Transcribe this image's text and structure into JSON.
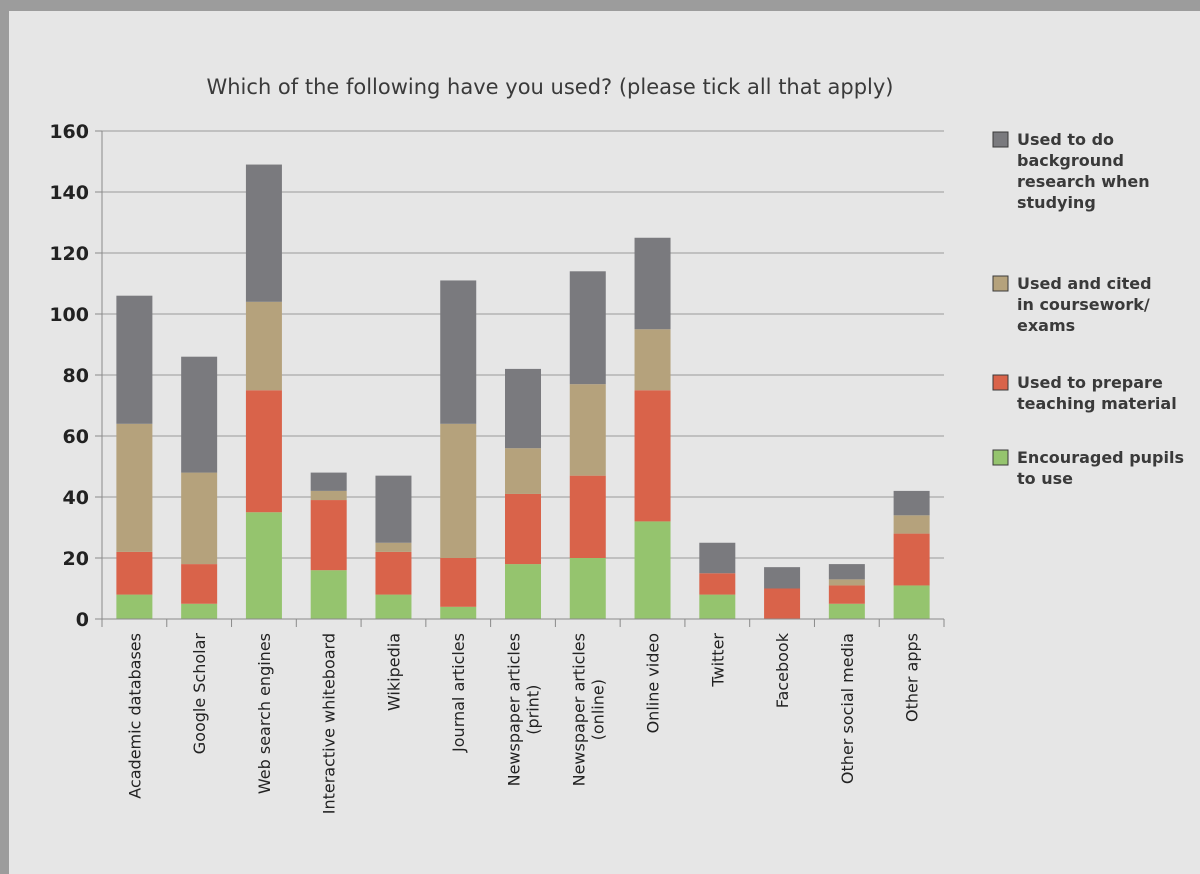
{
  "chart_data": {
    "type": "bar",
    "stacked": true,
    "title": "Which of the following have you used? (please tick all that apply)",
    "xlabel": "",
    "ylabel": "",
    "ylim": [
      0,
      160
    ],
    "yticks": [
      0,
      20,
      40,
      60,
      80,
      100,
      120,
      140,
      160
    ],
    "grid": true,
    "legend_position": "right",
    "categories": [
      "Academic databases",
      "Google Scholar",
      "Web search engines",
      "Interactive whiteboard",
      "Wikipedia",
      "Journal articles",
      "Newspaper articles (print)",
      "Newspaper articles (online)",
      "Online video",
      "Twitter",
      "Facebook",
      "Other social media",
      "Other apps"
    ],
    "category_lines": [
      [
        "Academic databases"
      ],
      [
        "Google Scholar"
      ],
      [
        "Web search engines"
      ],
      [
        "Interactive whiteboard"
      ],
      [
        "Wikipedia"
      ],
      [
        "Journal articles"
      ],
      [
        "Newspaper articles",
        "(print)"
      ],
      [
        "Newspaper articles",
        "(online)"
      ],
      [
        "Online video"
      ],
      [
        "Twitter"
      ],
      [
        "Facebook"
      ],
      [
        "Other social media"
      ],
      [
        "Other apps"
      ]
    ],
    "series": [
      {
        "name": "Encouraged pupils to use",
        "legend_lines": [
          "Encouraged pupils",
          "to use"
        ],
        "color": "#95c46e",
        "values": [
          8,
          5,
          35,
          16,
          8,
          4,
          18,
          20,
          32,
          8,
          0,
          5,
          11
        ]
      },
      {
        "name": "Used to prepare teaching material",
        "legend_lines": [
          "Used to prepare",
          "teaching material"
        ],
        "color": "#d9634a",
        "values": [
          14,
          13,
          40,
          23,
          14,
          16,
          23,
          27,
          43,
          7,
          10,
          6,
          17
        ]
      },
      {
        "name": "Used and cited in coursework/ exams",
        "legend_lines": [
          "Used and cited",
          "in coursework/",
          "exams"
        ],
        "color": "#b5a27c",
        "values": [
          42,
          30,
          29,
          3,
          3,
          44,
          15,
          30,
          20,
          0,
          0,
          2,
          6
        ]
      },
      {
        "name": "Used to do background research when studying",
        "legend_lines": [
          "Used to do",
          "background",
          "research when",
          "studying"
        ],
        "color": "#7a7a7e",
        "values": [
          42,
          38,
          45,
          6,
          22,
          47,
          26,
          37,
          30,
          10,
          7,
          5,
          8
        ]
      }
    ]
  }
}
